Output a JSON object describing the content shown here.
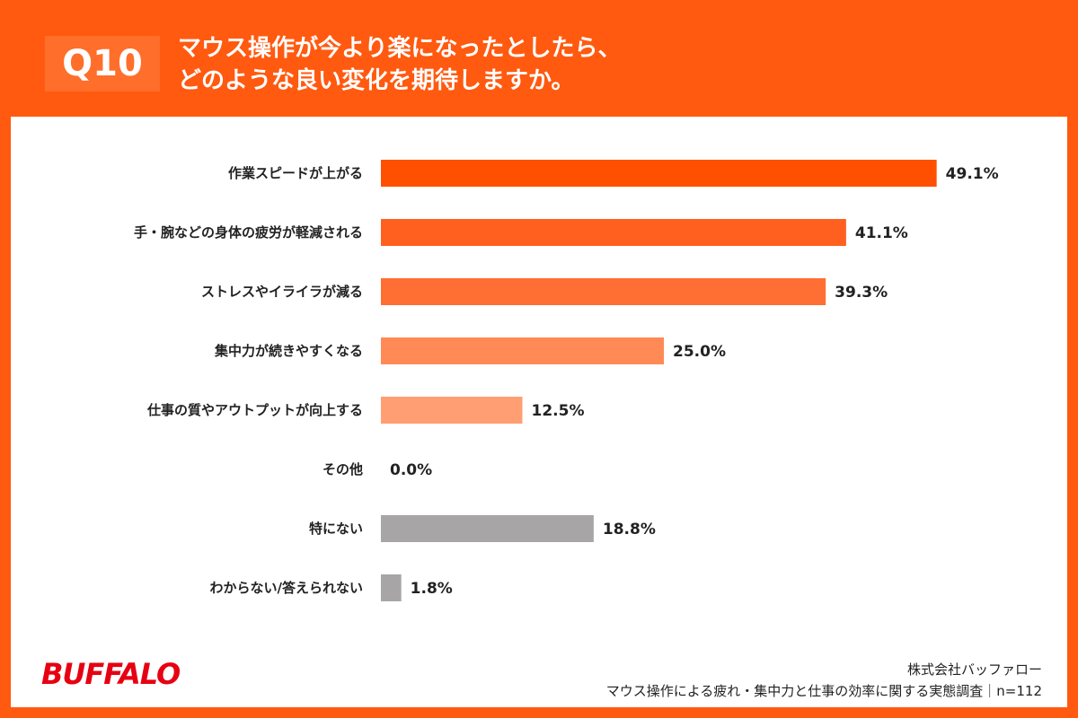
{
  "header": {
    "badge": "Q10",
    "title_line1": "マウス操作が今より楽になったとしたら、",
    "title_line2": "どのような良い変化を期待しますか。"
  },
  "chart_data": {
    "type": "bar",
    "orientation": "horizontal",
    "categories": [
      "作業スピードが上がる",
      "手・腕などの身体の疲労が軽減される",
      "ストレスやイライラが減る",
      "集中力が続きやすくなる",
      "仕事の質やアウトプットが向上する",
      "その他",
      "特にない",
      "わからない/答えられない"
    ],
    "values": [
      49.1,
      41.1,
      39.3,
      25.0,
      12.5,
      0.0,
      18.8,
      1.8
    ],
    "value_labels": [
      "49.1%",
      "41.1%",
      "39.3%",
      "25.0%",
      "12.5%",
      "0.0%",
      "18.8%",
      "1.8%"
    ],
    "bar_colors": [
      "#ff4f00",
      "#ff5f1f",
      "#ff6f33",
      "#ff8a55",
      "#ff9e73",
      "#ffb494",
      "#a7a5a6",
      "#a7a5a6"
    ],
    "xlim": [
      0,
      50
    ],
    "grid": false,
    "legend": "none"
  },
  "footer": {
    "logo_text": "BUFFALO",
    "company": "株式会社バッファロー",
    "survey": "マウス操作による疲れ・集中力と仕事の効率に関する実態調査｜n=112"
  },
  "colors": {
    "frame": "#ff5a10",
    "badge": "#ff6e2a",
    "logo_red": "#e60012"
  }
}
